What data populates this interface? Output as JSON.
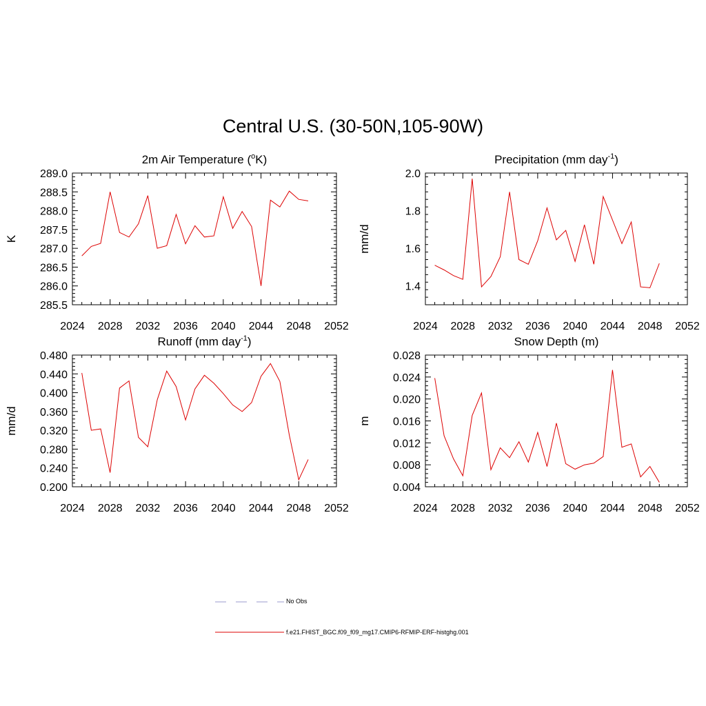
{
  "title": "Central U.S. (30-50N,105-90W)",
  "chart_data": [
    {
      "type": "line",
      "title": "2m Air Temperature (",
      "title_sup": "o",
      "title_after": "K)",
      "ylabel": "K",
      "xlim": [
        2024,
        2052
      ],
      "ylim": [
        285.5,
        289.0
      ],
      "xticks": [
        2024,
        2028,
        2032,
        2036,
        2040,
        2044,
        2048,
        2052
      ],
      "yticks": [
        "285.5",
        "286.0",
        "286.5",
        "287.0",
        "287.5",
        "288.0",
        "288.5",
        "289.0"
      ],
      "series": [
        {
          "name": "f.e21.FHIST_BGC.f09_f09_mg17.CMIP6-RFMIP-ERF-histghg.001",
          "x": [
            2025,
            2026,
            2027,
            2028,
            2029,
            2030,
            2031,
            2032,
            2033,
            2034,
            2035,
            2036,
            2037,
            2038,
            2039,
            2040,
            2041,
            2042,
            2043,
            2044,
            2045,
            2046,
            2047,
            2048,
            2049
          ],
          "y": [
            286.8,
            287.05,
            287.13,
            288.5,
            287.42,
            287.3,
            287.65,
            288.4,
            287.0,
            287.07,
            287.9,
            287.12,
            287.6,
            287.3,
            287.33,
            288.37,
            287.53,
            287.98,
            287.58,
            286.0,
            288.28,
            288.1,
            288.52,
            288.3,
            288.26
          ]
        }
      ]
    },
    {
      "type": "line",
      "title": "Precipitation (mm day",
      "title_sup": "-1",
      "title_after": ")",
      "ylabel": "mm/d",
      "xlim": [
        2024,
        2052
      ],
      "ylim": [
        1.3,
        2.0
      ],
      "xticks": [
        2024,
        2028,
        2032,
        2036,
        2040,
        2044,
        2048,
        2052
      ],
      "yticks": [
        "1.4",
        "1.6",
        "1.8",
        "2.0"
      ],
      "series": [
        {
          "name": "f.e21.FHIST_BGC.f09_f09_mg17.CMIP6-RFMIP-ERF-histghg.001",
          "x": [
            2025,
            2026,
            2027,
            2028,
            2029,
            2030,
            2031,
            2032,
            2033,
            2034,
            2035,
            2036,
            2037,
            2038,
            2039,
            2040,
            2041,
            2042,
            2043,
            2044,
            2045,
            2046,
            2047,
            2048,
            2049
          ],
          "y": [
            1.51,
            1.485,
            1.455,
            1.435,
            1.97,
            1.395,
            1.45,
            1.555,
            1.9,
            1.54,
            1.515,
            1.64,
            1.815,
            1.645,
            1.695,
            1.53,
            1.725,
            1.515,
            1.875,
            1.75,
            1.625,
            1.74,
            1.395,
            1.39,
            1.52
          ]
        }
      ]
    },
    {
      "type": "line",
      "title": "Runoff (mm day",
      "title_sup": "-1",
      "title_after": ")",
      "ylabel": "mm/d",
      "xlim": [
        2024,
        2052
      ],
      "ylim": [
        0.2,
        0.48
      ],
      "xticks": [
        2024,
        2028,
        2032,
        2036,
        2040,
        2044,
        2048,
        2052
      ],
      "yticks": [
        "0.200",
        "0.240",
        "0.280",
        "0.320",
        "0.360",
        "0.400",
        "0.440",
        "0.480"
      ],
      "series": [
        {
          "name": "f.e21.FHIST_BGC.f09_f09_mg17.CMIP6-RFMIP-ERF-histghg.001",
          "x": [
            2025,
            2026,
            2027,
            2028,
            2029,
            2030,
            2031,
            2032,
            2033,
            2034,
            2035,
            2036,
            2037,
            2038,
            2039,
            2040,
            2041,
            2042,
            2043,
            2044,
            2045,
            2046,
            2047,
            2048,
            2049
          ],
          "y": [
            0.442,
            0.32,
            0.323,
            0.23,
            0.41,
            0.425,
            0.305,
            0.285,
            0.385,
            0.446,
            0.413,
            0.342,
            0.408,
            0.437,
            0.42,
            0.398,
            0.374,
            0.36,
            0.379,
            0.435,
            0.462,
            0.424,
            0.31,
            0.215,
            0.258
          ]
        }
      ]
    },
    {
      "type": "line",
      "title": "Snow Depth (m)",
      "title_sup": "",
      "title_after": "",
      "ylabel": "m",
      "xlim": [
        2024,
        2052
      ],
      "ylim": [
        0.004,
        0.028
      ],
      "xticks": [
        2024,
        2028,
        2032,
        2036,
        2040,
        2044,
        2048,
        2052
      ],
      "yticks": [
        "0.004",
        "0.008",
        "0.012",
        "0.016",
        "0.020",
        "0.024",
        "0.028"
      ],
      "series": [
        {
          "name": "f.e21.FHIST_BGC.f09_f09_mg17.CMIP6-RFMIP-ERF-histghg.001",
          "x": [
            2025,
            2026,
            2027,
            2028,
            2029,
            2030,
            2031,
            2032,
            2033,
            2034,
            2035,
            2036,
            2037,
            2038,
            2039,
            2040,
            2041,
            2042,
            2043,
            2044,
            2045,
            2046,
            2047,
            2048,
            2049
          ],
          "y": [
            0.0238,
            0.0133,
            0.0091,
            0.006,
            0.017,
            0.0211,
            0.0071,
            0.0111,
            0.0093,
            0.0122,
            0.0085,
            0.0139,
            0.0077,
            0.0156,
            0.0082,
            0.0072,
            0.008,
            0.0083,
            0.0095,
            0.0253,
            0.0112,
            0.0118,
            0.0058,
            0.0077,
            0.0048
          ]
        }
      ]
    }
  ],
  "legend": {
    "items": [
      {
        "label": "No Obs",
        "color": "#9999cc",
        "style": "dashed"
      },
      {
        "label": "f.e21.FHIST_BGC.f09_f09_mg17.CMIP6-RFMIP-ERF-histghg.001",
        "color": "#dd0000",
        "style": "solid"
      }
    ]
  }
}
